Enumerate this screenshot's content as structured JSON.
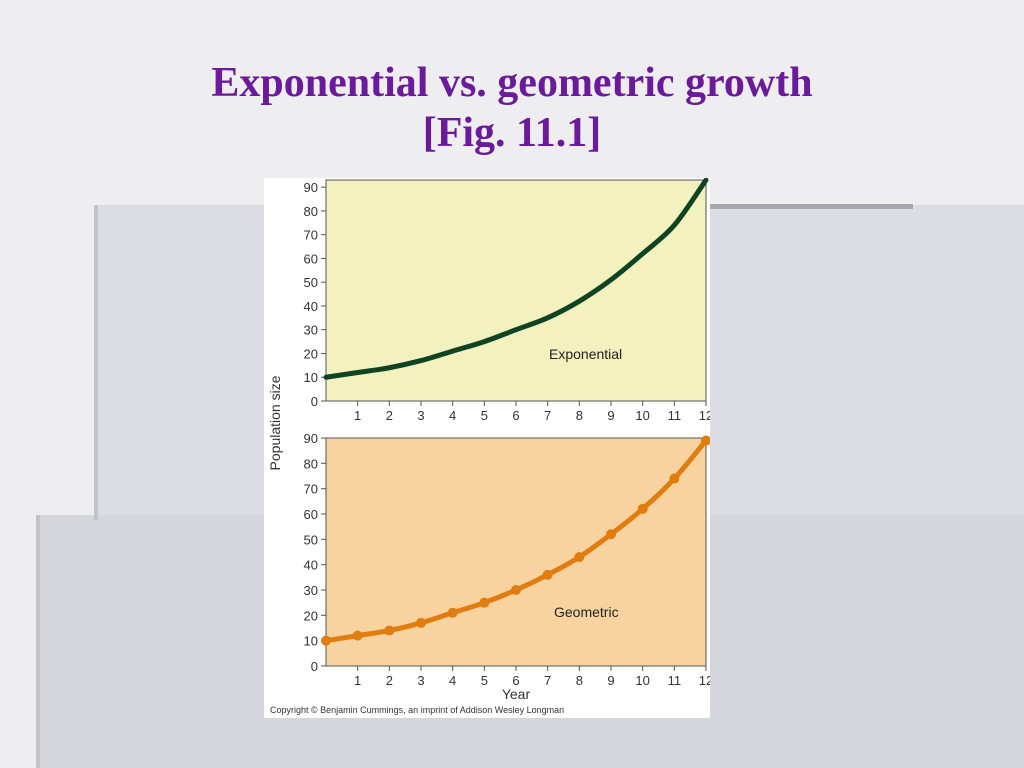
{
  "slide": {
    "title_line1": "Exponential vs. geometric growth",
    "title_line2": "[Fig. 11.1]",
    "copyright": "Copyright © Benjamin Cummings, an imprint of Addison Wesley Longman"
  },
  "colors": {
    "top_panel_bg": "#f3f1bd",
    "bottom_panel_bg": "#f8d29f",
    "exponential_line": "#0e4424",
    "geometric_line": "#e07d10",
    "title": "#6a1a9a"
  },
  "chart_data": [
    {
      "type": "line",
      "title": "",
      "xlabel": "",
      "ylabel": "Population size",
      "xlim": [
        0,
        12
      ],
      "ylim": [
        0,
        93
      ],
      "x_ticks": [
        1,
        2,
        3,
        4,
        5,
        6,
        7,
        8,
        9,
        10,
        11,
        12
      ],
      "y_ticks": [
        0,
        10,
        20,
        30,
        40,
        50,
        60,
        70,
        80,
        90
      ],
      "series": [
        {
          "name": "Exponential",
          "x": [
            0,
            1,
            2,
            3,
            4,
            5,
            6,
            7,
            8,
            9,
            10,
            11,
            12
          ],
          "values": [
            10,
            12,
            14,
            17,
            21,
            25,
            30,
            35,
            42,
            51,
            62,
            74,
            93
          ]
        }
      ]
    },
    {
      "type": "line",
      "title": "",
      "xlabel": "Year",
      "ylabel": "Population size",
      "xlim": [
        0,
        12
      ],
      "ylim": [
        0,
        90
      ],
      "x_ticks": [
        1,
        2,
        3,
        4,
        5,
        6,
        7,
        8,
        9,
        10,
        11,
        12
      ],
      "y_ticks": [
        0,
        10,
        20,
        30,
        40,
        50,
        60,
        70,
        80,
        90
      ],
      "series": [
        {
          "name": "Geometric",
          "x": [
            0,
            1,
            2,
            3,
            4,
            5,
            6,
            7,
            8,
            9,
            10,
            11,
            12
          ],
          "values": [
            10,
            12,
            14,
            17,
            21,
            25,
            30,
            36,
            43,
            52,
            62,
            74,
            89
          ]
        }
      ]
    }
  ]
}
